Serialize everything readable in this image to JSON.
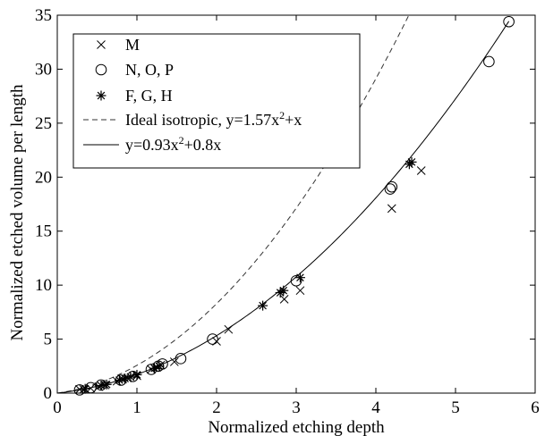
{
  "chart_data": {
    "type": "scatter",
    "title": "",
    "xlabel": "Normalized etching depth",
    "ylabel": "Normalized etched volume per length",
    "xlim": [
      0,
      6
    ],
    "ylim": [
      0,
      35
    ],
    "xticks": [
      "0",
      "1",
      "2",
      "3",
      "4",
      "5",
      "6"
    ],
    "yticks": [
      "0",
      "5",
      "10",
      "15",
      "20",
      "25",
      "30",
      "35"
    ],
    "grid": false,
    "legend_position": "top-left",
    "legend": [
      "M",
      "N, O, P",
      "F, G, H",
      "Ideal isotropic, y=1.57x²+x",
      "y=0.93x²+0.8x"
    ],
    "series": [
      {
        "name": "M",
        "marker": "x",
        "x": [
          0.28,
          0.33,
          0.42,
          0.52,
          0.6,
          0.75,
          0.82,
          0.88,
          1.0,
          1.18,
          1.25,
          1.3,
          1.47,
          2.0,
          2.15,
          2.85,
          3.05,
          4.2,
          4.57
        ],
        "y": [
          0.35,
          0.35,
          0.45,
          0.6,
          0.75,
          1.1,
          1.3,
          1.4,
          1.6,
          2.2,
          2.4,
          2.6,
          2.9,
          4.8,
          5.9,
          8.7,
          9.5,
          17.1,
          20.6
        ]
      },
      {
        "name": "N, O, P",
        "marker": "o",
        "x": [
          0.28,
          0.42,
          0.55,
          0.8,
          0.95,
          1.18,
          1.27,
          1.32,
          1.55,
          1.95,
          3.0,
          4.18,
          4.2,
          5.42,
          5.67
        ],
        "y": [
          0.3,
          0.5,
          0.75,
          1.2,
          1.55,
          2.2,
          2.5,
          2.7,
          3.2,
          5.0,
          10.4,
          18.9,
          19.1,
          30.7,
          34.4
        ]
      },
      {
        "name": "F, G, H",
        "marker": "*",
        "x": [
          0.35,
          0.55,
          0.62,
          0.78,
          0.85,
          0.92,
          1.0,
          1.22,
          1.28,
          2.58,
          2.8,
          2.84,
          3.05,
          4.42,
          4.45
        ],
        "y": [
          0.4,
          0.7,
          0.8,
          1.2,
          1.35,
          1.5,
          1.7,
          2.3,
          2.5,
          8.1,
          9.3,
          9.5,
          10.7,
          21.2,
          21.4
        ]
      },
      {
        "name": "Ideal isotropic, y=1.57x²+x",
        "type": "line",
        "style": "dashed",
        "a": 1.57,
        "b": 1
      },
      {
        "name": "y=0.93x²+0.8x",
        "type": "line",
        "style": "solid",
        "a": 0.93,
        "b": 0.8
      }
    ]
  }
}
